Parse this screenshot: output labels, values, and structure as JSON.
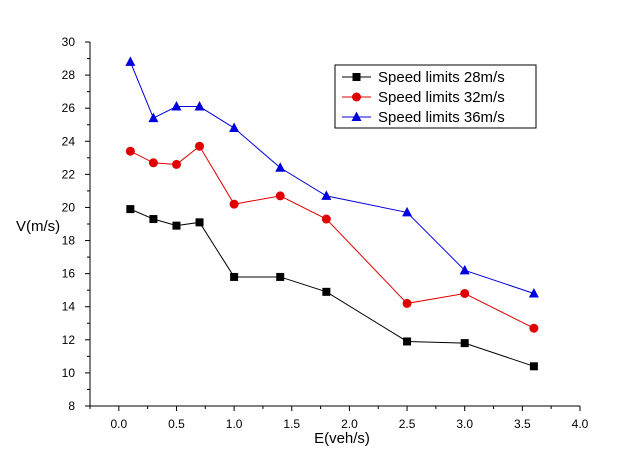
{
  "chart_data": {
    "type": "line",
    "title": "",
    "xlabel": "E(veh/s)",
    "ylabel": "V(m/s)",
    "xlim": [
      -0.25,
      4.0
    ],
    "ylim": [
      8,
      30
    ],
    "x_ticks": [
      0.0,
      0.5,
      1.0,
      1.5,
      2.0,
      2.5,
      3.0,
      3.5,
      4.0
    ],
    "x_tick_labels": [
      "0.0",
      "0.5",
      "1.0",
      "1.5",
      "2.0",
      "2.5",
      "3.0",
      "3.5",
      "4.0"
    ],
    "y_ticks": [
      8,
      10,
      12,
      14,
      16,
      18,
      20,
      22,
      24,
      26,
      28,
      30
    ],
    "y_tick_labels": [
      "8",
      "10",
      "12",
      "14",
      "16",
      "18",
      "20",
      "22",
      "24",
      "26",
      "28",
      "30"
    ],
    "grid": false,
    "legend_position": "top-right",
    "x": [
      0.1,
      0.3,
      0.5,
      0.7,
      1.0,
      1.4,
      1.8,
      2.5,
      3.0,
      3.6
    ],
    "series": [
      {
        "name": "Speed limits 28m/s",
        "color": "#000000",
        "marker": "square",
        "values": [
          19.9,
          19.3,
          18.9,
          19.1,
          15.8,
          15.8,
          14.9,
          11.9,
          11.8,
          10.4
        ]
      },
      {
        "name": "Speed limits 32m/s",
        "color": "#e00000",
        "marker": "circle",
        "values": [
          23.4,
          22.7,
          22.6,
          23.7,
          20.2,
          20.7,
          19.3,
          14.2,
          14.8,
          12.7
        ]
      },
      {
        "name": "Speed limits 36m/s",
        "color": "#0000e0",
        "marker": "triangle",
        "values": [
          28.8,
          25.4,
          26.1,
          26.1,
          24.8,
          22.4,
          20.7,
          19.7,
          16.2,
          14.8
        ]
      }
    ]
  }
}
